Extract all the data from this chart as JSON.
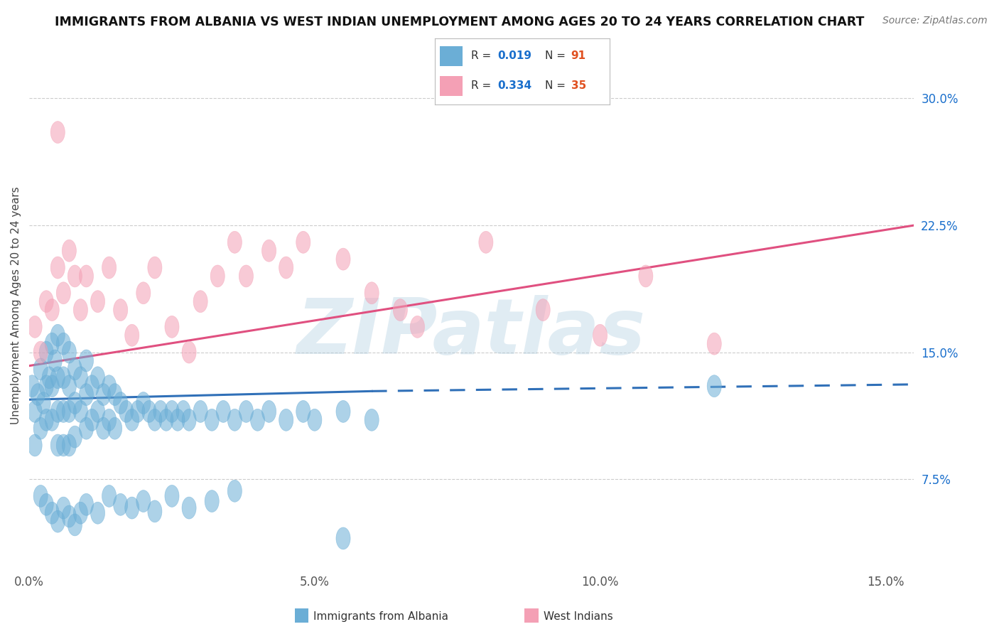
{
  "title": "IMMIGRANTS FROM ALBANIA VS WEST INDIAN UNEMPLOYMENT AMONG AGES 20 TO 24 YEARS CORRELATION CHART",
  "source": "Source: ZipAtlas.com",
  "ylabel": "Unemployment Among Ages 20 to 24 years",
  "xlim": [
    0.0,
    0.155
  ],
  "ylim": [
    0.02,
    0.335
  ],
  "yticks": [
    0.075,
    0.15,
    0.225,
    0.3
  ],
  "ytick_labels": [
    "7.5%",
    "15.0%",
    "22.5%",
    "30.0%"
  ],
  "xticks": [
    0.0,
    0.05,
    0.1,
    0.15
  ],
  "xtick_labels": [
    "0.0%",
    "5.0%",
    "10.0%",
    "15.0%"
  ],
  "watermark": "ZIPatlas",
  "legend_label_albania": "Immigrants from Albania",
  "legend_label_westindian": "West Indians",
  "color_albania": "#6baed6",
  "color_westindian": "#f4a0b5",
  "color_line_albania": "#3070b8",
  "color_line_westindian": "#e05080",
  "color_r_value": "#1a6fcc",
  "color_n_value": "#e05020",
  "background_color": "#ffffff",
  "grid_color": "#cccccc",
  "title_fontsize": 12.5,
  "albania_x": [
    0.0005,
    0.001,
    0.001,
    0.0015,
    0.002,
    0.002,
    0.0025,
    0.003,
    0.003,
    0.003,
    0.0035,
    0.004,
    0.004,
    0.004,
    0.0045,
    0.005,
    0.005,
    0.005,
    0.005,
    0.006,
    0.006,
    0.006,
    0.006,
    0.007,
    0.007,
    0.007,
    0.007,
    0.008,
    0.008,
    0.008,
    0.009,
    0.009,
    0.01,
    0.01,
    0.01,
    0.011,
    0.011,
    0.012,
    0.012,
    0.013,
    0.013,
    0.014,
    0.014,
    0.015,
    0.015,
    0.016,
    0.017,
    0.018,
    0.019,
    0.02,
    0.021,
    0.022,
    0.023,
    0.024,
    0.025,
    0.026,
    0.027,
    0.028,
    0.03,
    0.032,
    0.034,
    0.036,
    0.038,
    0.04,
    0.042,
    0.045,
    0.048,
    0.05,
    0.055,
    0.06,
    0.002,
    0.003,
    0.004,
    0.005,
    0.006,
    0.007,
    0.008,
    0.009,
    0.01,
    0.012,
    0.014,
    0.016,
    0.018,
    0.02,
    0.022,
    0.025,
    0.028,
    0.032,
    0.036,
    0.12,
    0.055
  ],
  "albania_y": [
    0.13,
    0.115,
    0.095,
    0.125,
    0.14,
    0.105,
    0.12,
    0.15,
    0.13,
    0.11,
    0.135,
    0.155,
    0.13,
    0.11,
    0.145,
    0.16,
    0.135,
    0.115,
    0.095,
    0.155,
    0.135,
    0.115,
    0.095,
    0.15,
    0.13,
    0.115,
    0.095,
    0.14,
    0.12,
    0.1,
    0.135,
    0.115,
    0.145,
    0.125,
    0.105,
    0.13,
    0.11,
    0.135,
    0.115,
    0.125,
    0.105,
    0.13,
    0.11,
    0.125,
    0.105,
    0.12,
    0.115,
    0.11,
    0.115,
    0.12,
    0.115,
    0.11,
    0.115,
    0.11,
    0.115,
    0.11,
    0.115,
    0.11,
    0.115,
    0.11,
    0.115,
    0.11,
    0.115,
    0.11,
    0.115,
    0.11,
    0.115,
    0.11,
    0.115,
    0.11,
    0.065,
    0.06,
    0.055,
    0.05,
    0.058,
    0.053,
    0.048,
    0.055,
    0.06,
    0.055,
    0.065,
    0.06,
    0.058,
    0.062,
    0.056,
    0.065,
    0.058,
    0.062,
    0.068,
    0.13,
    0.04
  ],
  "westindian_x": [
    0.001,
    0.002,
    0.003,
    0.004,
    0.005,
    0.006,
    0.007,
    0.008,
    0.009,
    0.01,
    0.012,
    0.014,
    0.016,
    0.018,
    0.02,
    0.022,
    0.025,
    0.028,
    0.03,
    0.033,
    0.036,
    0.038,
    0.042,
    0.045,
    0.048,
    0.055,
    0.06,
    0.065,
    0.068,
    0.08,
    0.09,
    0.1,
    0.108,
    0.12,
    0.005
  ],
  "westindian_y": [
    0.165,
    0.15,
    0.18,
    0.175,
    0.2,
    0.185,
    0.21,
    0.195,
    0.175,
    0.195,
    0.18,
    0.2,
    0.175,
    0.16,
    0.185,
    0.2,
    0.165,
    0.15,
    0.18,
    0.195,
    0.215,
    0.195,
    0.21,
    0.2,
    0.215,
    0.205,
    0.185,
    0.175,
    0.165,
    0.215,
    0.175,
    0.16,
    0.195,
    0.155,
    0.28
  ],
  "line_albania_x0": 0.0,
  "line_albania_y0": 0.122,
  "line_albania_x1": 0.06,
  "line_albania_y1": 0.127,
  "line_albania_dash_x0": 0.06,
  "line_albania_dash_y0": 0.127,
  "line_albania_dash_x1": 0.155,
  "line_albania_dash_y1": 0.131,
  "line_wi_x0": 0.0,
  "line_wi_y0": 0.142,
  "line_wi_x1": 0.155,
  "line_wi_y1": 0.225
}
